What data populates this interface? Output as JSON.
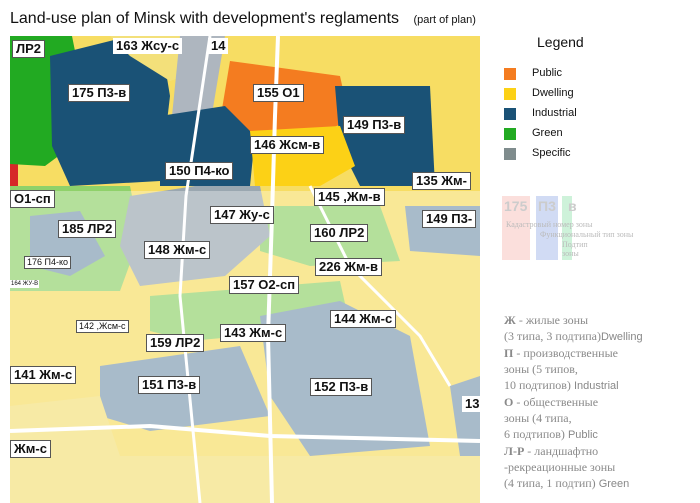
{
  "title": "Land-use plan of Minsk with development's reglaments",
  "title_note": "(part of plan)",
  "legend": {
    "title": "Legend",
    "items": [
      {
        "label": "Public",
        "color": "#f47c20"
      },
      {
        "label": "Dwelling",
        "color": "#fcd116"
      },
      {
        "label": "Industrial",
        "color": "#1a5276"
      },
      {
        "label": "Green",
        "color": "#22aa22"
      },
      {
        "label": "Specific",
        "color": "#7f8c8d"
      }
    ]
  },
  "zones": {
    "lr2_top": "ЛР2",
    "z163": "163 Жсу-с",
    "z14": "14",
    "z175": "175 П3-в",
    "z155": "155 О1",
    "z149a": "149 П3-в",
    "z146": "146 Жсм-в",
    "z150": "150 П4-ко",
    "z135": "135 Жм-",
    "o1sp": "О1-сп",
    "z145": "145 ,Жм-в",
    "z147": "147 Жу-с",
    "z149b": "149 П3-",
    "z185": "185 ЛР2",
    "z160": "160 ЛР2",
    "z148": "148 Жм-с",
    "z176": "176 П4-ко",
    "z226": "226 Жм-в",
    "z164": "164 ЖУ-В",
    "z157": "157 О2-сп",
    "z144": "144 Жм-с",
    "z142": "142 ,Жсм-с",
    "z143": "143 Жм-с",
    "z159": "159 ЛР2",
    "z141": "141 Жм-с",
    "z151": "151 П3-в",
    "z152": "152 П3-в",
    "z13": "13",
    "zjms": "Жм-с"
  },
  "example": {
    "number": "175",
    "function": "П3",
    "subtype": "в",
    "cap_number": "Кадастровый номер зоны",
    "cap_function": "Функциональный тип зоны",
    "cap_subtype_1": "Подтип",
    "cap_subtype_2": "зоны"
  },
  "notes": {
    "zh_key": "Ж",
    "zh_text": " - жилые зоны",
    "zh_detail": "(3 типа, 3 подтипа)",
    "zh_tag": "Dwelling",
    "p_key": "П",
    "p_text": " - производственные",
    "p_text2": "зоны (5 типов,",
    "p_detail": "10 подтипов)",
    "p_tag": "Industrial",
    "o_key": "О",
    "o_text": " - общественные",
    "o_text2": "зоны (4 типа,",
    "o_detail": "6 подтипов)",
    "o_tag": "Public",
    "lr_key": "Л-Р",
    "lr_text": " - ландшафтно",
    "lr_text2": "-рекреационные зоны",
    "lr_detail": "(4 типа, 1 подтип)",
    "lr_tag": "Green"
  }
}
